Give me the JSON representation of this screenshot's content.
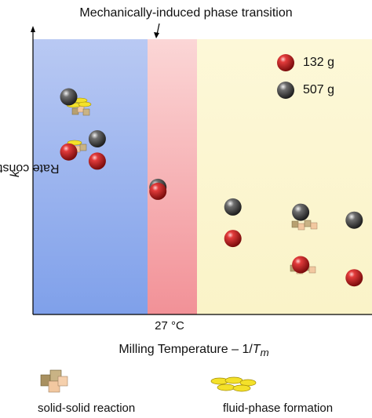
{
  "chart_data": {
    "type": "scatter",
    "title": "Mechanically-induced phase transition",
    "xlabel": "Milling Temperature – 1/",
    "xlabel_var": "T",
    "xlabel_sub": "m",
    "ylabel": "Rate constant – ln ",
    "ylabel_var": "k",
    "x_tick_labels": [
      "27 °C"
    ],
    "regions": [
      {
        "name": "blue",
        "color": "#9ab6ee"
      },
      {
        "name": "red",
        "color": "#f5a7aa"
      },
      {
        "name": "yellow",
        "color": "#fbf6d0"
      }
    ],
    "series": [
      {
        "name": "132 g",
        "color": "#c41e1e",
        "points": [
          {
            "x": 1.0,
            "y": 6.2
          },
          {
            "x": 1.8,
            "y": 5.85
          },
          {
            "x": 3.5,
            "y": 4.7
          },
          {
            "x": 5.6,
            "y": 2.9
          },
          {
            "x": 7.5,
            "y": 1.9
          },
          {
            "x": 9.0,
            "y": 1.4
          }
        ]
      },
      {
        "name": "507 g",
        "color": "#4a4a4a",
        "points": [
          {
            "x": 1.0,
            "y": 8.3
          },
          {
            "x": 1.8,
            "y": 6.7
          },
          {
            "x": 3.5,
            "y": 4.85
          },
          {
            "x": 5.6,
            "y": 4.1
          },
          {
            "x": 7.5,
            "y": 3.9
          },
          {
            "x": 9.0,
            "y": 3.6
          }
        ]
      }
    ],
    "xlim": [
      0,
      9.5
    ],
    "ylim": [
      0,
      10.5
    ],
    "legend_position": "top-right"
  },
  "bottom_legend": {
    "solid_label": "solid-solid reaction",
    "fluid_label": "fluid-phase formation"
  }
}
